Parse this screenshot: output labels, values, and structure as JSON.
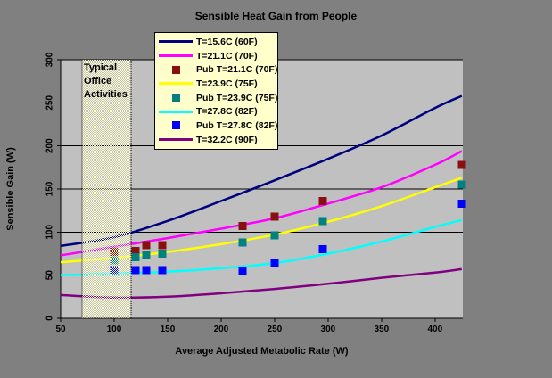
{
  "window": {
    "background_color": "#808080"
  },
  "chart_data": {
    "type": "line+scatter",
    "title": "Sensible Heat Gain from People",
    "xlabel": "Average Adjusted Metabolic Rate (W)",
    "ylabel": "Sensible Gain (W)",
    "xlim": [
      50,
      426
    ],
    "ylim": [
      0,
      300
    ],
    "x_ticks": [
      50,
      100,
      150,
      200,
      250,
      300,
      350,
      400
    ],
    "y_ticks": [
      0,
      50,
      100,
      150,
      200,
      250,
      300
    ],
    "grid": true,
    "plot_bg": "#C0C0C0",
    "gridline_color": "#000000",
    "legend_position": "top-center",
    "legend_bg": "#FFFFCC",
    "annotation_band": {
      "label": "Typical Office Activities",
      "label_lines": [
        "Typical",
        "Office",
        "Activities"
      ],
      "x_range": [
        70,
        116
      ],
      "fill": "#FFFFCC",
      "border_style": "dotted"
    },
    "x_samples": [
      50,
      100,
      150,
      200,
      250,
      300,
      350,
      400,
      425
    ],
    "series": [
      {
        "name": "T=15.6C (60F)",
        "type": "line",
        "color": "#000080",
        "y": [
          84,
          94,
          113,
          136,
          160,
          185,
          212,
          244,
          258
        ]
      },
      {
        "name": "T=21.1C (70F)",
        "type": "line",
        "color": "#FF00FF",
        "y": [
          73,
          83,
          93,
          104,
          116,
          133,
          152,
          178,
          194
        ]
      },
      {
        "name": "Pub T=21.1C (70F)",
        "type": "scatter",
        "color": "#871010",
        "marker": "square",
        "x": [
          100,
          120,
          130,
          145,
          220,
          250,
          295,
          425
        ],
        "y": [
          77,
          78,
          85,
          85,
          107,
          118,
          136,
          178
        ]
      },
      {
        "name": "T=23.9C (75F)",
        "type": "line",
        "color": "#FFFF00",
        "y": [
          65,
          70,
          77,
          86,
          97,
          112,
          130,
          152,
          163
        ]
      },
      {
        "name": "Pub T=23.9C (75F)",
        "type": "scatter",
        "color": "#008080",
        "marker": "square",
        "x": [
          100,
          120,
          130,
          145,
          220,
          250,
          295,
          425
        ],
        "y": [
          67,
          71,
          74,
          75,
          88,
          96,
          113,
          155
        ]
      },
      {
        "name": "T=27.8C (82F)",
        "type": "line",
        "color": "#00FFFF",
        "y": [
          50,
          52,
          54,
          58,
          64,
          75,
          89,
          106,
          114
        ]
      },
      {
        "name": "Pub T=27.8C (82F)",
        "type": "scatter",
        "color": "#0000FF",
        "marker": "square",
        "x": [
          100,
          120,
          130,
          145,
          220,
          250,
          295,
          425
        ],
        "y": [
          56,
          56,
          56,
          56,
          55,
          64,
          80,
          133
        ]
      },
      {
        "name": "T=32.2C (90F)",
        "type": "line",
        "color": "#800080",
        "y": [
          27,
          24,
          25,
          29,
          34,
          40,
          47,
          53,
          57
        ]
      }
    ]
  }
}
